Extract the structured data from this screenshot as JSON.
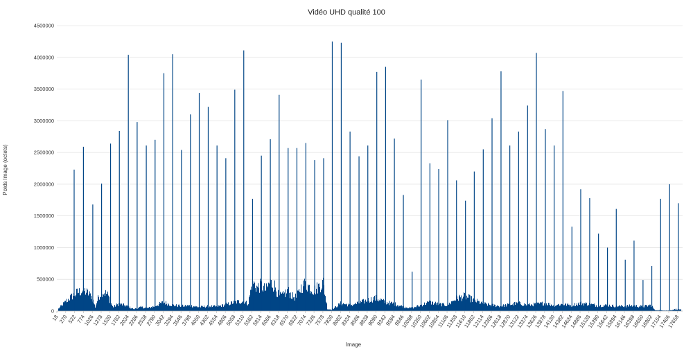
{
  "chart_data": {
    "type": "bar",
    "title": "Vidéo UHD qualité 100",
    "xlabel": "Image",
    "ylabel": "Poids Image (octets)",
    "ylim": [
      0,
      4500000
    ],
    "yticks": [
      0,
      500000,
      1000000,
      1500000,
      2000000,
      2500000,
      3000000,
      3500000,
      4000000,
      4500000
    ],
    "x_range": [
      18,
      17800
    ],
    "x_tick_labels": [
      "18",
      "270",
      "522",
      "774",
      "1026",
      "1278",
      "1530",
      "1782",
      "2034",
      "2286",
      "2538",
      "2790",
      "3042",
      "3294",
      "3546",
      "3798",
      "4050",
      "4302",
      "4554",
      "4806",
      "5058",
      "5310",
      "5562",
      "5814",
      "6066",
      "6318",
      "6570",
      "6822",
      "7074",
      "7326",
      "7578",
      "7830",
      "8082",
      "8334",
      "8586",
      "8838",
      "9090",
      "9342",
      "9594",
      "9846",
      "10098",
      "10350",
      "10602",
      "10854",
      "11106",
      "11358",
      "11610",
      "11862",
      "12114",
      "12366",
      "12618",
      "12870",
      "13122",
      "13374",
      "13626",
      "13878",
      "14130",
      "14382",
      "14634",
      "14886",
      "15138",
      "15390",
      "15642",
      "15894",
      "16146",
      "16398",
      "16650",
      "16902",
      "17154",
      "17406",
      "17658"
    ],
    "series_color": "#004586",
    "grid": true,
    "legend": "none",
    "keyframes": [
      {
        "x": 510,
        "y": 2230000
      },
      {
        "x": 774,
        "y": 2590000
      },
      {
        "x": 1040,
        "y": 1680000
      },
      {
        "x": 1290,
        "y": 2010000
      },
      {
        "x": 1545,
        "y": 2640000
      },
      {
        "x": 1795,
        "y": 2840000
      },
      {
        "x": 2050,
        "y": 4040000
      },
      {
        "x": 2300,
        "y": 2980000
      },
      {
        "x": 2560,
        "y": 2610000
      },
      {
        "x": 2810,
        "y": 2700000
      },
      {
        "x": 3060,
        "y": 3750000
      },
      {
        "x": 3310,
        "y": 4050000
      },
      {
        "x": 3560,
        "y": 2540000
      },
      {
        "x": 3815,
        "y": 3100000
      },
      {
        "x": 4065,
        "y": 3440000
      },
      {
        "x": 4320,
        "y": 3220000
      },
      {
        "x": 4570,
        "y": 2610000
      },
      {
        "x": 4820,
        "y": 2410000
      },
      {
        "x": 5075,
        "y": 3490000
      },
      {
        "x": 5330,
        "y": 4110000
      },
      {
        "x": 5580,
        "y": 1770000
      },
      {
        "x": 5830,
        "y": 2450000
      },
      {
        "x": 6085,
        "y": 2710000
      },
      {
        "x": 6335,
        "y": 3410000
      },
      {
        "x": 6590,
        "y": 2570000
      },
      {
        "x": 6840,
        "y": 2570000
      },
      {
        "x": 7095,
        "y": 2650000
      },
      {
        "x": 7345,
        "y": 2380000
      },
      {
        "x": 7600,
        "y": 2410000
      },
      {
        "x": 7845,
        "y": 4250000
      },
      {
        "x": 8100,
        "y": 4230000
      },
      {
        "x": 8350,
        "y": 2830000
      },
      {
        "x": 8605,
        "y": 2440000
      },
      {
        "x": 8855,
        "y": 2610000
      },
      {
        "x": 9110,
        "y": 3770000
      },
      {
        "x": 9360,
        "y": 3850000
      },
      {
        "x": 9610,
        "y": 2720000
      },
      {
        "x": 9865,
        "y": 1830000
      },
      {
        "x": 10115,
        "y": 620000
      },
      {
        "x": 10370,
        "y": 3650000
      },
      {
        "x": 10620,
        "y": 2330000
      },
      {
        "x": 10870,
        "y": 2240000
      },
      {
        "x": 11125,
        "y": 3010000
      },
      {
        "x": 11375,
        "y": 2060000
      },
      {
        "x": 11630,
        "y": 1740000
      },
      {
        "x": 11880,
        "y": 2200000
      },
      {
        "x": 12135,
        "y": 2550000
      },
      {
        "x": 12385,
        "y": 3040000
      },
      {
        "x": 12640,
        "y": 3780000
      },
      {
        "x": 12890,
        "y": 2610000
      },
      {
        "x": 13140,
        "y": 2830000
      },
      {
        "x": 13395,
        "y": 3240000
      },
      {
        "x": 13645,
        "y": 4070000
      },
      {
        "x": 13900,
        "y": 2870000
      },
      {
        "x": 14150,
        "y": 2610000
      },
      {
        "x": 14400,
        "y": 3470000
      },
      {
        "x": 14655,
        "y": 1330000
      },
      {
        "x": 14905,
        "y": 1920000
      },
      {
        "x": 15160,
        "y": 1780000
      },
      {
        "x": 15410,
        "y": 1220000
      },
      {
        "x": 15665,
        "y": 1000000
      },
      {
        "x": 15915,
        "y": 1610000
      },
      {
        "x": 16170,
        "y": 810000
      },
      {
        "x": 16420,
        "y": 1110000
      },
      {
        "x": 16675,
        "y": 490000
      },
      {
        "x": 16925,
        "y": 710000
      },
      {
        "x": 17175,
        "y": 1770000
      },
      {
        "x": 17430,
        "y": 2000000
      },
      {
        "x": 17680,
        "y": 1700000
      }
    ],
    "body_envelope": [
      {
        "x": 18,
        "y": 20000
      },
      {
        "x": 200,
        "y": 150000
      },
      {
        "x": 400,
        "y": 280000
      },
      {
        "x": 600,
        "y": 380000
      },
      {
        "x": 774,
        "y": 420000
      },
      {
        "x": 900,
        "y": 360000
      },
      {
        "x": 1000,
        "y": 300000
      },
      {
        "x": 1100,
        "y": 80000
      },
      {
        "x": 1200,
        "y": 300000
      },
      {
        "x": 1300,
        "y": 400000
      },
      {
        "x": 1450,
        "y": 340000
      },
      {
        "x": 1600,
        "y": 80000
      },
      {
        "x": 1782,
        "y": 150000
      },
      {
        "x": 2000,
        "y": 100000
      },
      {
        "x": 2200,
        "y": 40000
      },
      {
        "x": 2400,
        "y": 80000
      },
      {
        "x": 2600,
        "y": 60000
      },
      {
        "x": 2790,
        "y": 100000
      },
      {
        "x": 3042,
        "y": 180000
      },
      {
        "x": 3294,
        "y": 120000
      },
      {
        "x": 3546,
        "y": 100000
      },
      {
        "x": 3798,
        "y": 110000
      },
      {
        "x": 4050,
        "y": 80000
      },
      {
        "x": 4302,
        "y": 100000
      },
      {
        "x": 4554,
        "y": 90000
      },
      {
        "x": 4806,
        "y": 130000
      },
      {
        "x": 5058,
        "y": 180000
      },
      {
        "x": 5310,
        "y": 200000
      },
      {
        "x": 5450,
        "y": 150000
      },
      {
        "x": 5562,
        "y": 600000
      },
      {
        "x": 5700,
        "y": 480000
      },
      {
        "x": 5814,
        "y": 520000
      },
      {
        "x": 5950,
        "y": 420000
      },
      {
        "x": 6066,
        "y": 580000
      },
      {
        "x": 6200,
        "y": 520000
      },
      {
        "x": 6318,
        "y": 300000
      },
      {
        "x": 6450,
        "y": 320000
      },
      {
        "x": 6570,
        "y": 420000
      },
      {
        "x": 6700,
        "y": 300000
      },
      {
        "x": 6822,
        "y": 280000
      },
      {
        "x": 6950,
        "y": 480000
      },
      {
        "x": 7074,
        "y": 560000
      },
      {
        "x": 7200,
        "y": 480000
      },
      {
        "x": 7326,
        "y": 420000
      },
      {
        "x": 7450,
        "y": 500000
      },
      {
        "x": 7578,
        "y": 580000
      },
      {
        "x": 7700,
        "y": 40000
      },
      {
        "x": 7830,
        "y": 30000
      },
      {
        "x": 8082,
        "y": 160000
      },
      {
        "x": 8334,
        "y": 120000
      },
      {
        "x": 8586,
        "y": 160000
      },
      {
        "x": 8838,
        "y": 220000
      },
      {
        "x": 9090,
        "y": 260000
      },
      {
        "x": 9342,
        "y": 180000
      },
      {
        "x": 9594,
        "y": 150000
      },
      {
        "x": 9846,
        "y": 90000
      },
      {
        "x": 10098,
        "y": 60000
      },
      {
        "x": 10350,
        "y": 120000
      },
      {
        "x": 10602,
        "y": 180000
      },
      {
        "x": 10854,
        "y": 140000
      },
      {
        "x": 11106,
        "y": 120000
      },
      {
        "x": 11358,
        "y": 260000
      },
      {
        "x": 11610,
        "y": 300000
      },
      {
        "x": 11862,
        "y": 220000
      },
      {
        "x": 12114,
        "y": 150000
      },
      {
        "x": 12366,
        "y": 120000
      },
      {
        "x": 12618,
        "y": 100000
      },
      {
        "x": 12870,
        "y": 130000
      },
      {
        "x": 13122,
        "y": 160000
      },
      {
        "x": 13374,
        "y": 120000
      },
      {
        "x": 13626,
        "y": 140000
      },
      {
        "x": 13878,
        "y": 160000
      },
      {
        "x": 14130,
        "y": 120000
      },
      {
        "x": 14382,
        "y": 140000
      },
      {
        "x": 14634,
        "y": 120000
      },
      {
        "x": 14886,
        "y": 160000
      },
      {
        "x": 15138,
        "y": 140000
      },
      {
        "x": 15390,
        "y": 110000
      },
      {
        "x": 15642,
        "y": 120000
      },
      {
        "x": 15894,
        "y": 100000
      },
      {
        "x": 16146,
        "y": 100000
      },
      {
        "x": 16398,
        "y": 110000
      },
      {
        "x": 16650,
        "y": 90000
      },
      {
        "x": 16902,
        "y": 120000
      },
      {
        "x": 17000,
        "y": 20000
      },
      {
        "x": 17406,
        "y": 10000
      },
      {
        "x": 17600,
        "y": 40000
      },
      {
        "x": 17800,
        "y": 30000
      }
    ]
  }
}
